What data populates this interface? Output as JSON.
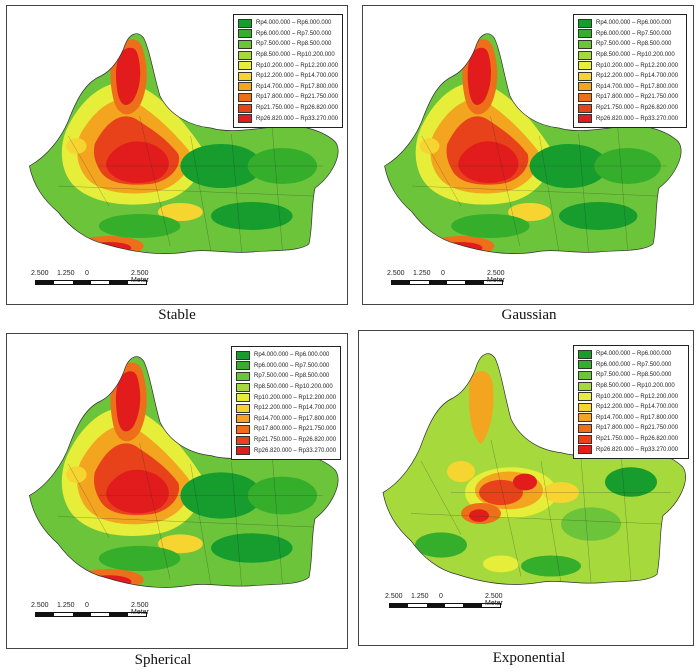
{
  "legend": {
    "classes": [
      {
        "label": "Rp4.000.000 – Rp6.000.000",
        "color": "#169d2e"
      },
      {
        "label": "Rp6.000.000 – Rp7.500.000",
        "color": "#35ae2c"
      },
      {
        "label": "Rp7.500.000 – Rp8.500.000",
        "color": "#6cc43a"
      },
      {
        "label": "Rp8.500.000 – Rp10.200.000",
        "color": "#a6d93c"
      },
      {
        "label": "Rp10.200.000 – Rp12.200.000",
        "color": "#e6ee3a"
      },
      {
        "label": "Rp12.200.000 – Rp14.700.000",
        "color": "#f6d531"
      },
      {
        "label": "Rp14.700.000 – Rp17.800.000",
        "color": "#f3a51f"
      },
      {
        "label": "Rp17.800.000 – Rp21.750.000",
        "color": "#ee6f1a"
      },
      {
        "label": "Rp21.750.000 – Rp26.820.000",
        "color": "#e8421b"
      },
      {
        "label": "Rp26.820.000 – Rp33.270.000",
        "color": "#e21c1c"
      }
    ]
  },
  "scale": {
    "labels": [
      "2.500",
      "1.250",
      "0",
      "2.500 Meter"
    ]
  },
  "panels": [
    {
      "caption": "Stable"
    },
    {
      "caption": "Gaussian"
    },
    {
      "caption": "Spherical"
    },
    {
      "caption": "Exponential"
    }
  ]
}
